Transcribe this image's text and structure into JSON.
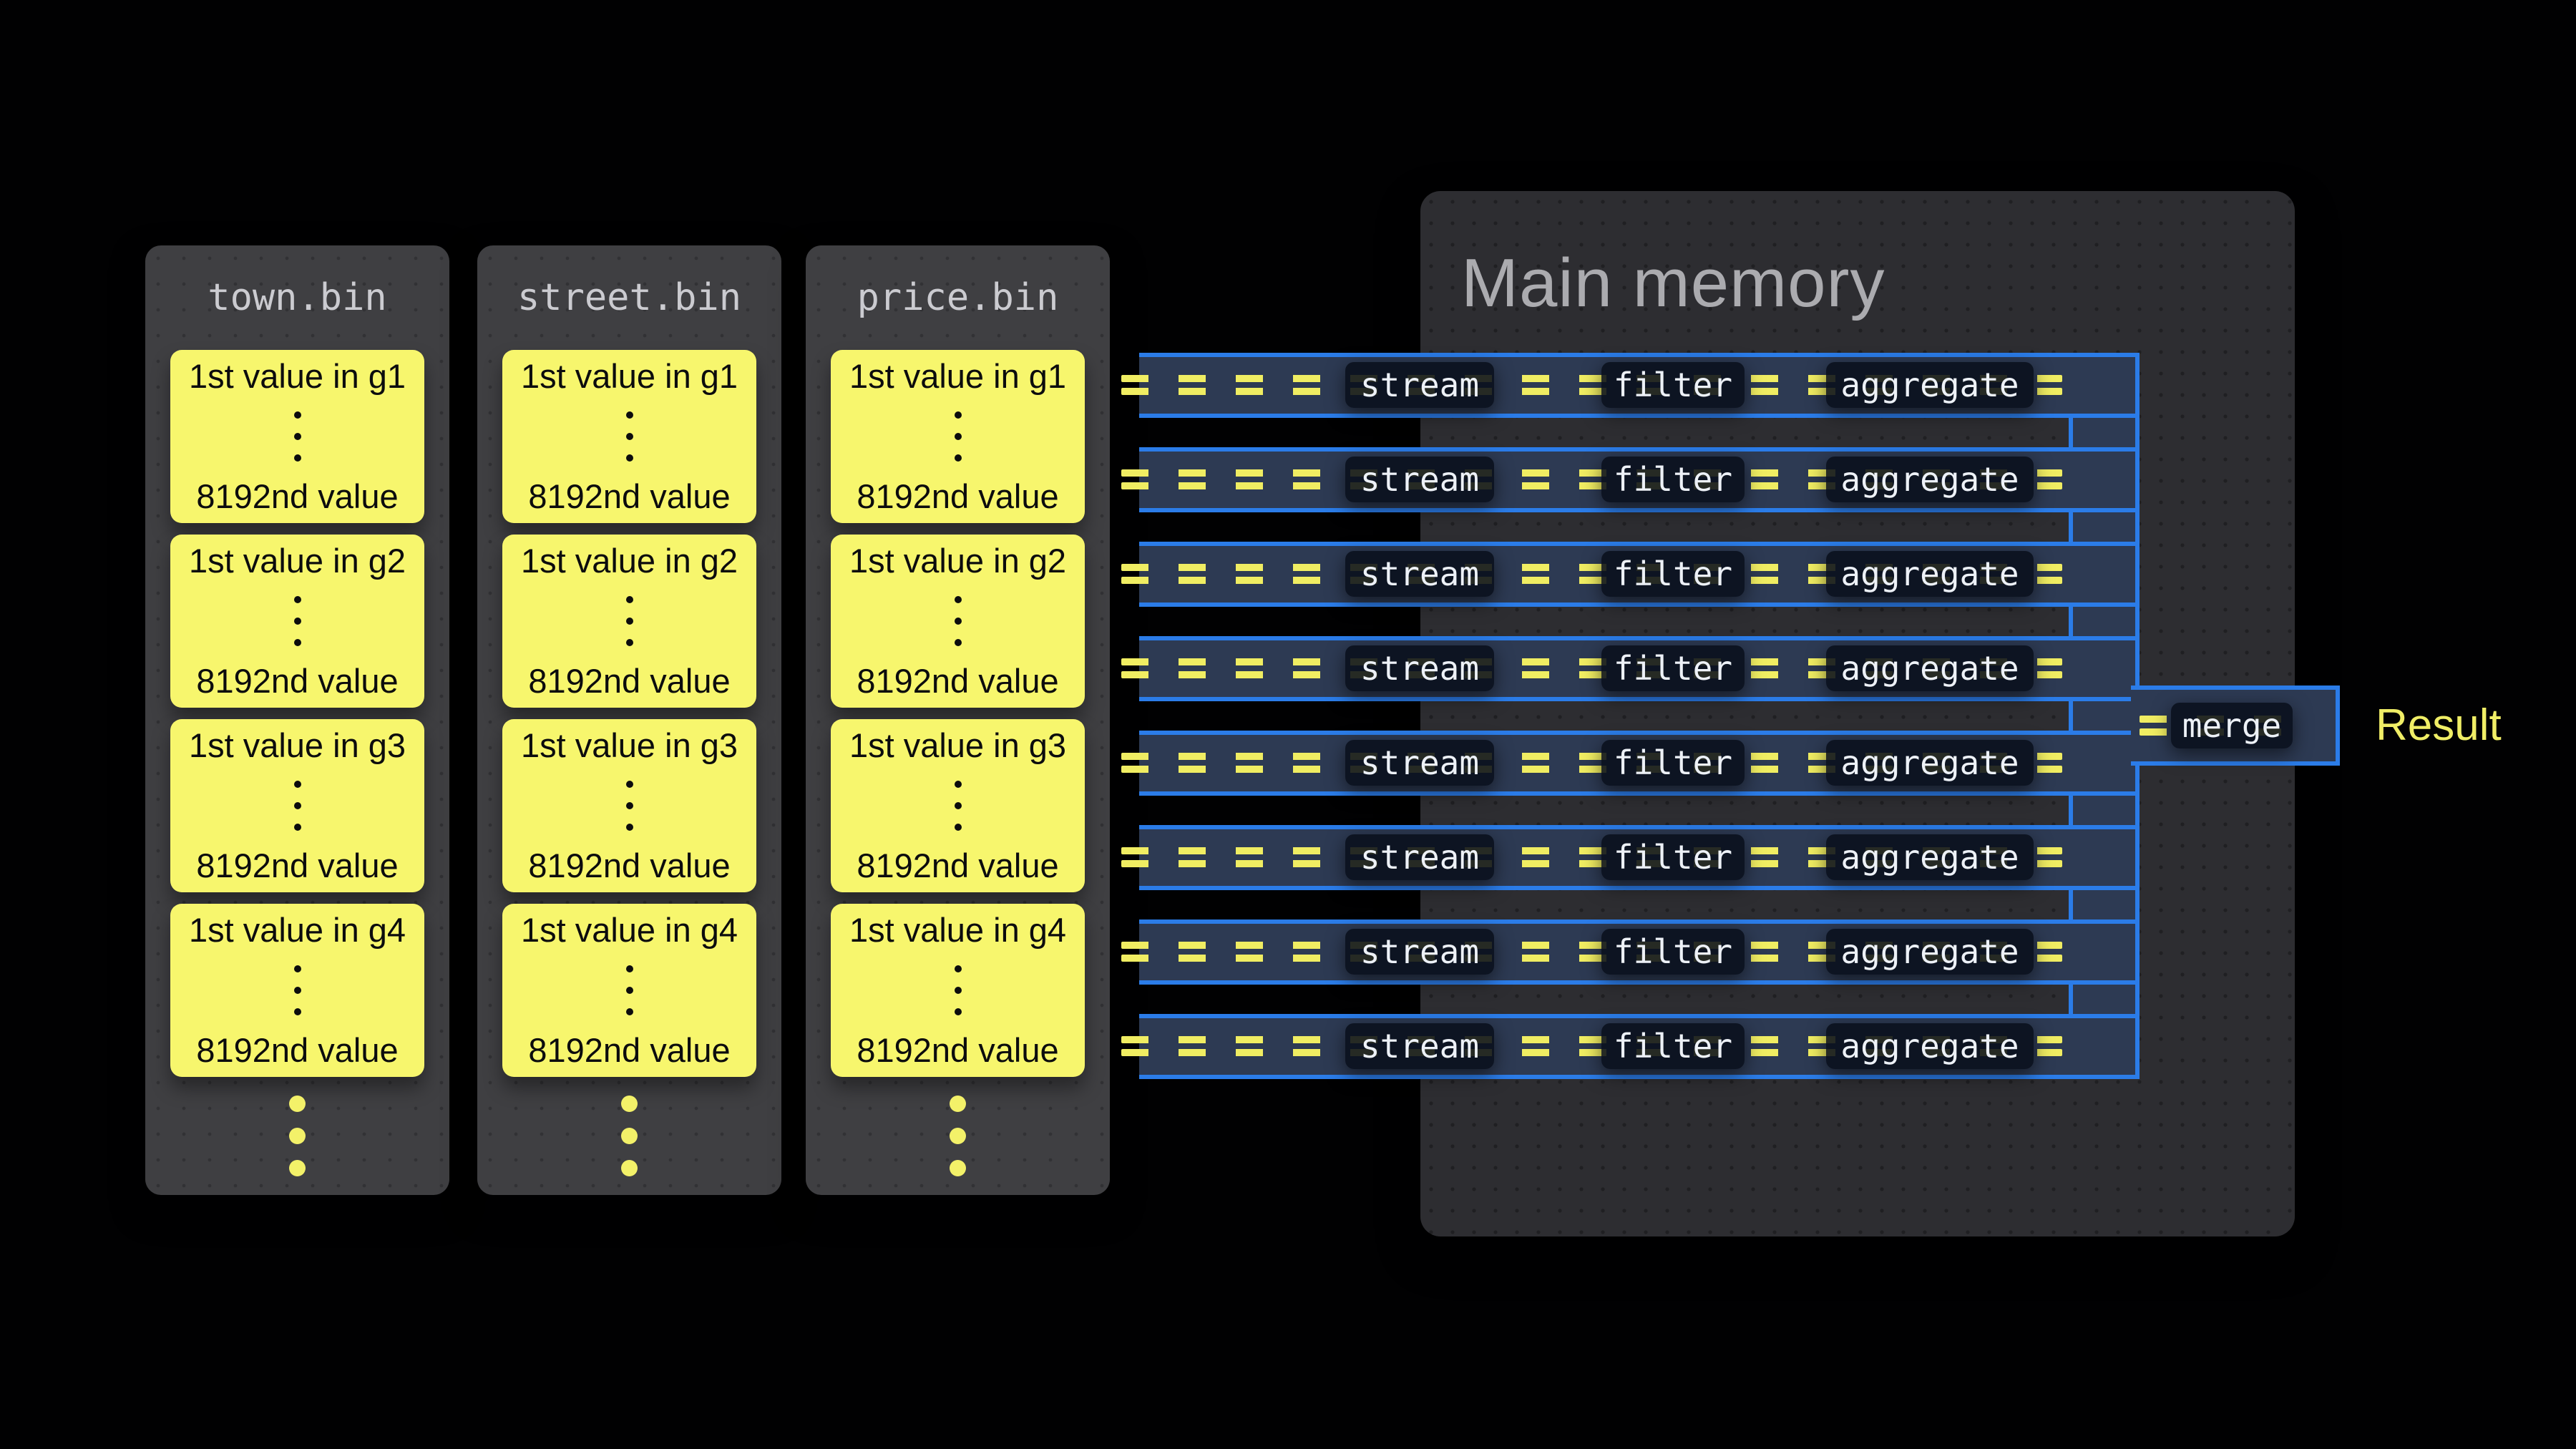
{
  "memory": {
    "title": "Main memory"
  },
  "columns": [
    {
      "name": "town.bin",
      "groups": [
        {
          "first": "1st value in g1",
          "last": "8192nd value"
        },
        {
          "first": "1st value in g2",
          "last": "8192nd value"
        },
        {
          "first": "1st value in g3",
          "last": "8192nd value"
        },
        {
          "first": "1st value in g4",
          "last": "8192nd value"
        }
      ]
    },
    {
      "name": "street.bin",
      "groups": [
        {
          "first": "1st value in g1",
          "last": "8192nd value"
        },
        {
          "first": "1st value in g2",
          "last": "8192nd value"
        },
        {
          "first": "1st value in g3",
          "last": "8192nd value"
        },
        {
          "first": "1st value in g4",
          "last": "8192nd value"
        }
      ]
    },
    {
      "name": "price.bin",
      "groups": [
        {
          "first": "1st value in g1",
          "last": "8192nd value"
        },
        {
          "first": "1st value in g2",
          "last": "8192nd value"
        },
        {
          "first": "1st value in g3",
          "last": "8192nd value"
        },
        {
          "first": "1st value in g4",
          "last": "8192nd value"
        }
      ]
    }
  ],
  "pipeline": {
    "rows": [
      {
        "stream": "stream",
        "filter": "filter",
        "aggregate": "aggregate"
      },
      {
        "stream": "stream",
        "filter": "filter",
        "aggregate": "aggregate"
      },
      {
        "stream": "stream",
        "filter": "filter",
        "aggregate": "aggregate"
      },
      {
        "stream": "stream",
        "filter": "filter",
        "aggregate": "aggregate"
      },
      {
        "stream": "stream",
        "filter": "filter",
        "aggregate": "aggregate"
      },
      {
        "stream": "stream",
        "filter": "filter",
        "aggregate": "aggregate"
      },
      {
        "stream": "stream",
        "filter": "filter",
        "aggregate": "aggregate"
      },
      {
        "stream": "stream",
        "filter": "filter",
        "aggregate": "aggregate"
      }
    ],
    "merge_label": "merge",
    "result_label": "Result"
  },
  "colors": {
    "accent_blue": "#2b7ce8",
    "lane_fill": "#2d3a53",
    "dash_yellow": "#f0ed62",
    "granule_yellow": "#f7f66d",
    "operator_box": "#0c1420",
    "memory_bg": "#2d2d31",
    "column_bg": "#3f3f42",
    "result_text": "#f0ee66",
    "background": "#010102"
  }
}
